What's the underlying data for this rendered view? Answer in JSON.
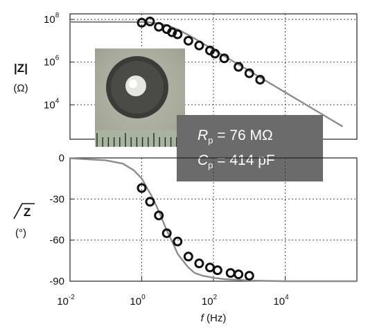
{
  "chart_data": [
    {
      "type": "scatter",
      "id": "magnitude",
      "ylabel_main": "|Z|",
      "ylabel_unit": "(Ω)",
      "x_scale": "log",
      "y_scale": "log",
      "xlim": [
        0.01,
        1000000
      ],
      "ylim": [
        100,
        100000000
      ],
      "y_ticks": [
        {
          "value": 10000,
          "base": "10",
          "exp": "4"
        },
        {
          "value": 1000000,
          "base": "10",
          "exp": "6"
        },
        {
          "value": 100000000,
          "base": "10",
          "exp": "8"
        }
      ],
      "grid": true,
      "series": [
        {
          "role": "measured",
          "marker": "open-circle",
          "x": [
            1,
            1.7,
            3,
            5,
            7,
            10,
            20,
            40,
            80,
            110,
            200,
            500,
            1000,
            2000
          ],
          "y": [
            70000000,
            80000000,
            45000000,
            35000000,
            25000000,
            20000000,
            10000000,
            6000000,
            3500000,
            2500000,
            1500000,
            600000,
            300000,
            150000
          ]
        },
        {
          "role": "model",
          "line": "solid-gray",
          "x": [
            0.01,
            0.03,
            0.1,
            0.3,
            1,
            1.5,
            3,
            5,
            10,
            20,
            30,
            50,
            100,
            300,
            1000,
            3000,
            10000,
            30000,
            100000,
            400000
          ],
          "y": [
            76000000,
            76000000,
            76000000,
            76000000,
            75000000,
            73000000,
            64000000,
            53000000,
            34000000,
            18500000,
            12600000,
            7600000,
            3800000,
            1280000,
            385000,
            128000,
            38400,
            12800,
            3840,
            960
          ]
        }
      ]
    },
    {
      "type": "scatter",
      "id": "phase",
      "ylabel_main": "Z",
      "ylabel_unit": "(°)",
      "xlabel_var": "f",
      "xlabel_unit": " (Hz)",
      "x_scale": "log",
      "y_scale": "linear",
      "xlim": [
        0.01,
        1000000
      ],
      "ylim": [
        -90,
        0
      ],
      "y_ticks": [
        "0",
        "-30",
        "-60",
        "-90"
      ],
      "x_ticks": [
        {
          "value": 0.01,
          "base": "10",
          "exp": "-2"
        },
        {
          "value": 1,
          "base": "10",
          "exp": "0"
        },
        {
          "value": 100,
          "base": "10",
          "exp": "2"
        },
        {
          "value": 10000,
          "base": "10",
          "exp": "4"
        }
      ],
      "grid": true,
      "series": [
        {
          "role": "measured",
          "marker": "open-circle",
          "x": [
            1,
            1.7,
            3,
            5,
            10,
            20,
            40,
            80,
            130,
            300,
            500,
            1000
          ],
          "y": [
            -22,
            -32,
            -42,
            -55,
            -61,
            -72,
            -77,
            -80,
            -82,
            -84,
            -85,
            -86
          ]
        },
        {
          "role": "model",
          "line": "solid-gray",
          "x": [
            0.01,
            0.1,
            0.3,
            0.6,
            1,
            2,
            3,
            5,
            8,
            10,
            15,
            20,
            30,
            50,
            100,
            200,
            1000,
            10000,
            1000000
          ],
          "y": [
            -0.3,
            -1.7,
            -4.2,
            -9,
            -15,
            -29,
            -39,
            -53,
            -64,
            -70,
            -76,
            -80,
            -84,
            -86,
            -87.5,
            -88.5,
            -89.5,
            -90,
            -90
          ]
        }
      ]
    }
  ],
  "annotation": {
    "rp_symbol": "R",
    "rp_sub": "p",
    "rp_value": " = 76 MΩ",
    "cp_symbol": "C",
    "cp_sub": "p",
    "cp_value": " = 414 pF",
    "box_color": "#6b6b6b"
  },
  "photo": {
    "description_icon": "sample-photo-icon",
    "background": "#aeb0a0",
    "ring_color": "#3b3c39",
    "center_color": "#e6e6e0"
  }
}
